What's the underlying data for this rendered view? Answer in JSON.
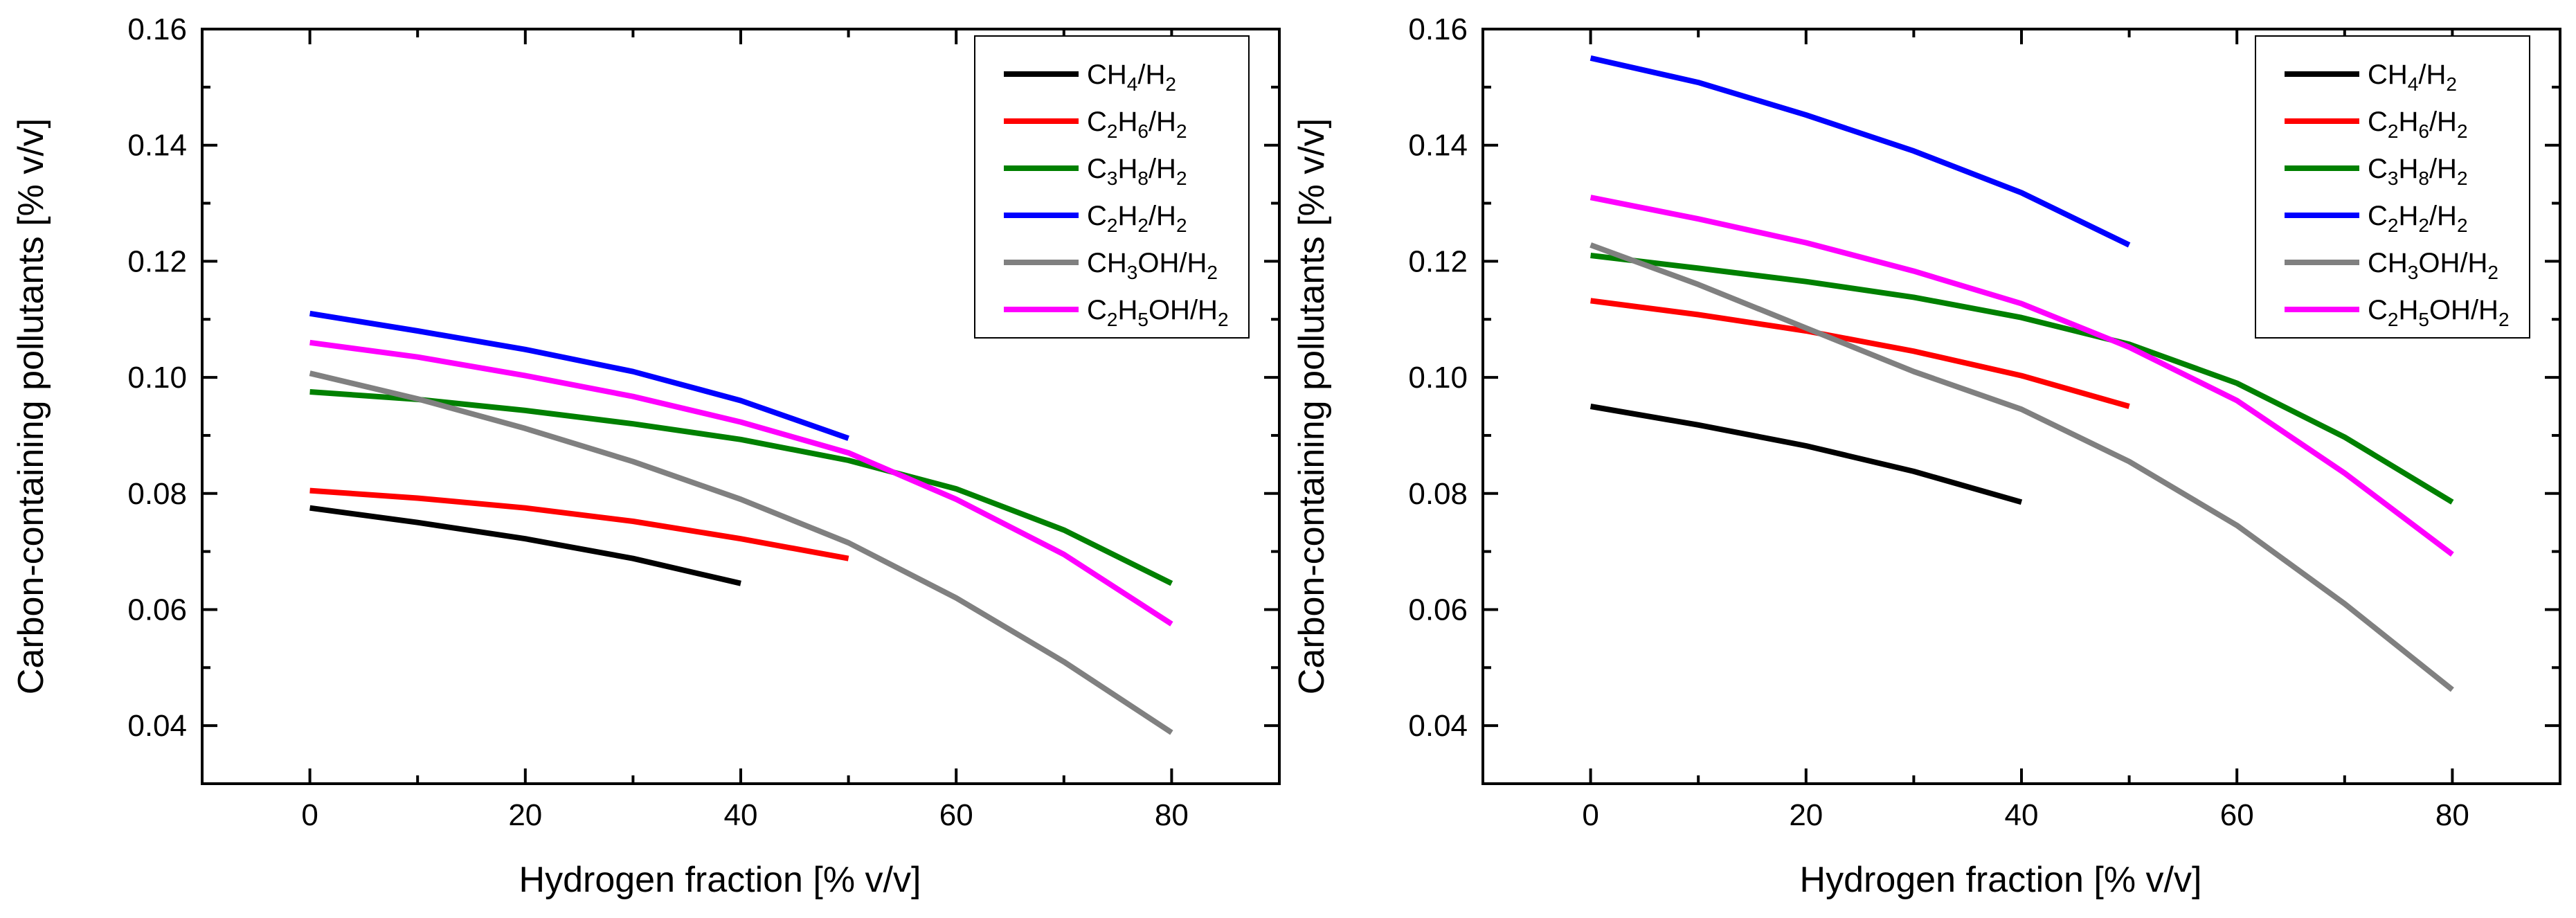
{
  "chart_data": [
    {
      "type": "line",
      "panel": "left",
      "title": "",
      "xlabel": "Hydrogen fraction [% v/v]",
      "ylabel": "Carbon-containing pollutants [% v/v]",
      "xlim": [
        -10,
        90
      ],
      "ylim": [
        0.03,
        0.16
      ],
      "xticks": [
        0,
        20,
        40,
        60,
        80
      ],
      "yticks": [
        0.04,
        0.06,
        0.08,
        0.1,
        0.12,
        0.14,
        0.16
      ],
      "xtick_labels": [
        "0",
        "20",
        "40",
        "60",
        "80"
      ],
      "ytick_labels": [
        "0.04",
        "0.06",
        "0.08",
        "0.10",
        "0.12",
        "0.14",
        "0.16"
      ],
      "legend_position": "top-right",
      "series": [
        {
          "name": "CH4/H2",
          "label_parts": [
            [
              "CH",
              ""
            ],
            [
              "4",
              "sub"
            ],
            [
              "/H",
              ""
            ],
            [
              "2",
              "sub"
            ]
          ],
          "color": "#000000",
          "x": [
            0,
            10,
            20,
            30,
            40
          ],
          "y": [
            0.0775,
            0.075,
            0.0722,
            0.0688,
            0.0645
          ]
        },
        {
          "name": "C2H6/H2",
          "label_parts": [
            [
              "C",
              ""
            ],
            [
              "2",
              "sub"
            ],
            [
              "H",
              ""
            ],
            [
              "6",
              "sub"
            ],
            [
              "/H",
              ""
            ],
            [
              "2",
              "sub"
            ]
          ],
          "color": "#ff0000",
          "x": [
            0,
            10,
            20,
            30,
            40,
            50
          ],
          "y": [
            0.0805,
            0.0792,
            0.0775,
            0.0752,
            0.0722,
            0.0688
          ]
        },
        {
          "name": "C3H8/H2",
          "label_parts": [
            [
              "C",
              ""
            ],
            [
              "3",
              "sub"
            ],
            [
              "H",
              ""
            ],
            [
              "8",
              "sub"
            ],
            [
              "/H",
              ""
            ],
            [
              "2",
              "sub"
            ]
          ],
          "color": "#008000",
          "x": [
            0,
            10,
            20,
            30,
            40,
            50,
            60,
            70,
            80
          ],
          "y": [
            0.0975,
            0.0962,
            0.0943,
            0.092,
            0.0893,
            0.0857,
            0.0808,
            0.0737,
            0.0645
          ]
        },
        {
          "name": "C2H2/H2",
          "label_parts": [
            [
              "C",
              ""
            ],
            [
              "2",
              "sub"
            ],
            [
              "H",
              ""
            ],
            [
              "2",
              "sub"
            ],
            [
              "/H",
              ""
            ],
            [
              "2",
              "sub"
            ]
          ],
          "color": "#0000ff",
          "x": [
            0,
            10,
            20,
            30,
            40,
            50
          ],
          "y": [
            0.111,
            0.108,
            0.1048,
            0.101,
            0.096,
            0.0895
          ]
        },
        {
          "name": "CH3OH/H2",
          "label_parts": [
            [
              "CH",
              ""
            ],
            [
              "3",
              "sub"
            ],
            [
              "OH/H",
              ""
            ],
            [
              "2",
              "sub"
            ]
          ],
          "color": "#808080",
          "x": [
            0,
            10,
            20,
            30,
            40,
            50,
            60,
            70,
            80
          ],
          "y": [
            0.1007,
            0.0963,
            0.0912,
            0.0855,
            0.079,
            0.0715,
            0.062,
            0.051,
            0.0388
          ]
        },
        {
          "name": "C2H5OH/H2",
          "label_parts": [
            [
              "C",
              ""
            ],
            [
              "2",
              "sub"
            ],
            [
              "H",
              ""
            ],
            [
              "5",
              "sub"
            ],
            [
              "OH/H",
              ""
            ],
            [
              "2",
              "sub"
            ]
          ],
          "color": "#ff00ff",
          "x": [
            0,
            10,
            20,
            30,
            40,
            50,
            60,
            70,
            80
          ],
          "y": [
            0.106,
            0.1035,
            0.1003,
            0.0967,
            0.0923,
            0.087,
            0.079,
            0.0695,
            0.0575
          ]
        }
      ]
    },
    {
      "type": "line",
      "panel": "right",
      "title": "",
      "xlabel": "Hydrogen fraction [% v/v]",
      "ylabel": "Carbon-containing pollutants [% v/v]",
      "xlim": [
        -10,
        90
      ],
      "ylim": [
        0.03,
        0.16
      ],
      "xticks": [
        0,
        20,
        40,
        60,
        80
      ],
      "yticks": [
        0.04,
        0.06,
        0.08,
        0.1,
        0.12,
        0.14,
        0.16
      ],
      "xtick_labels": [
        "0",
        "20",
        "40",
        "60",
        "80"
      ],
      "ytick_labels": [
        "0.04",
        "0.06",
        "0.08",
        "0.10",
        "0.12",
        "0.14",
        "0.16"
      ],
      "legend_position": "top-right",
      "series": [
        {
          "name": "CH4/H2",
          "label_parts": [
            [
              "CH",
              ""
            ],
            [
              "4",
              "sub"
            ],
            [
              "/H",
              ""
            ],
            [
              "2",
              "sub"
            ]
          ],
          "color": "#000000",
          "x": [
            0,
            10,
            20,
            30,
            40
          ],
          "y": [
            0.095,
            0.0918,
            0.0882,
            0.0838,
            0.0785
          ]
        },
        {
          "name": "C2H6/H2",
          "label_parts": [
            [
              "C",
              ""
            ],
            [
              "2",
              "sub"
            ],
            [
              "H",
              ""
            ],
            [
              "6",
              "sub"
            ],
            [
              "/H",
              ""
            ],
            [
              "2",
              "sub"
            ]
          ],
          "color": "#ff0000",
          "x": [
            0,
            10,
            20,
            30,
            40,
            50
          ],
          "y": [
            0.1132,
            0.1108,
            0.108,
            0.1045,
            0.1003,
            0.095
          ]
        },
        {
          "name": "C3H8/H2",
          "label_parts": [
            [
              "C",
              ""
            ],
            [
              "3",
              "sub"
            ],
            [
              "H",
              ""
            ],
            [
              "8",
              "sub"
            ],
            [
              "/H",
              ""
            ],
            [
              "2",
              "sub"
            ]
          ],
          "color": "#008000",
          "x": [
            0,
            10,
            20,
            30,
            40,
            50,
            60,
            70,
            80
          ],
          "y": [
            0.121,
            0.1188,
            0.1165,
            0.1138,
            0.1103,
            0.1057,
            0.099,
            0.0897,
            0.0785
          ]
        },
        {
          "name": "C2H2/H2",
          "label_parts": [
            [
              "C",
              ""
            ],
            [
              "2",
              "sub"
            ],
            [
              "H",
              ""
            ],
            [
              "2",
              "sub"
            ],
            [
              "/H",
              ""
            ],
            [
              "2",
              "sub"
            ]
          ],
          "color": "#0000ff",
          "x": [
            0,
            10,
            20,
            30,
            40,
            50
          ],
          "y": [
            0.155,
            0.1508,
            0.1452,
            0.139,
            0.1318,
            0.1228
          ]
        },
        {
          "name": "CH3OH/H2",
          "label_parts": [
            [
              "CH",
              ""
            ],
            [
              "3",
              "sub"
            ],
            [
              "OH/H",
              ""
            ],
            [
              "2",
              "sub"
            ]
          ],
          "color": "#808080",
          "x": [
            0,
            10,
            20,
            30,
            40,
            50,
            60,
            70,
            80
          ],
          "y": [
            0.1228,
            0.116,
            0.1085,
            0.101,
            0.0945,
            0.0855,
            0.0745,
            0.061,
            0.0462
          ]
        },
        {
          "name": "C2H5OH/H2",
          "label_parts": [
            [
              "C",
              ""
            ],
            [
              "2",
              "sub"
            ],
            [
              "H",
              ""
            ],
            [
              "5",
              "sub"
            ],
            [
              "OH/H",
              ""
            ],
            [
              "2",
              "sub"
            ]
          ],
          "color": "#ff00ff",
          "x": [
            0,
            10,
            20,
            30,
            40,
            50,
            60,
            70,
            80
          ],
          "y": [
            0.131,
            0.1273,
            0.1232,
            0.1183,
            0.1127,
            0.1052,
            0.096,
            0.0835,
            0.0695
          ]
        }
      ]
    }
  ]
}
